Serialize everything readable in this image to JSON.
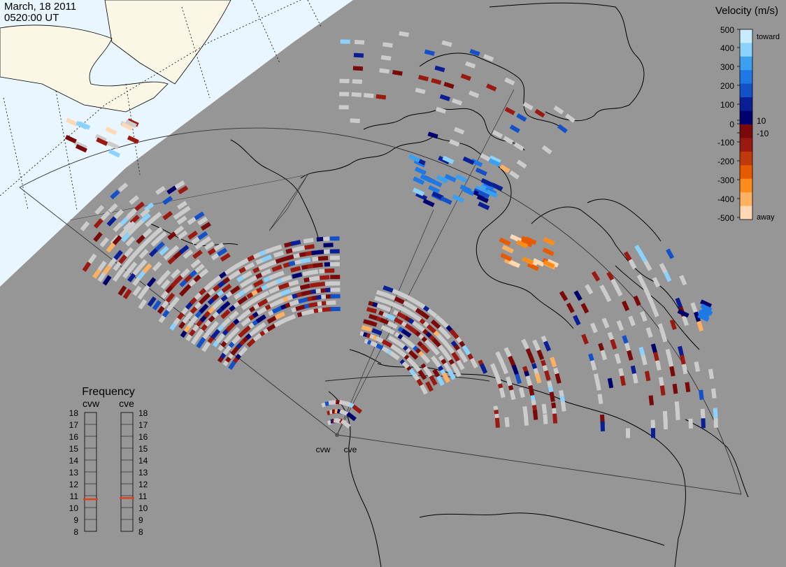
{
  "header": {
    "date": "March, 18 2011",
    "time": "0520:00 UT"
  },
  "colorbar": {
    "title": "Velocity (m/s)",
    "ticks": [
      "500",
      "400",
      "300",
      "200",
      "100",
      "10",
      "0",
      "-10",
      "-100",
      "-200",
      "-300",
      "-400",
      "-500"
    ],
    "toward_label": "toward",
    "away_label": "away",
    "colors": [
      "#ffd9b3",
      "#ffb060",
      "#ff8c1a",
      "#e85a00",
      "#c0390b",
      "#9a1a12",
      "#7a0a0a",
      "#00006e",
      "#0a1e96",
      "#1450c8",
      "#1e78e6",
      "#3ca0f0",
      "#8cd2ff",
      "#c8ebff"
    ]
  },
  "frequency": {
    "title": "Frequency",
    "radars": [
      "cvw",
      "cve"
    ],
    "ticks": [
      "18",
      "17",
      "16",
      "15",
      "14",
      "13",
      "12",
      "11",
      "10",
      "9",
      "8"
    ],
    "cvw_mhz": 10.7,
    "cve_mhz": 10.8,
    "marker_color": "#e0401a"
  },
  "map": {
    "radar_labels": [
      "cvw",
      "cve"
    ],
    "land_color": "#969696",
    "daylight_color": "#eaf6ff",
    "coast_color": "#000000",
    "no_data_color": "#cccccc"
  }
}
